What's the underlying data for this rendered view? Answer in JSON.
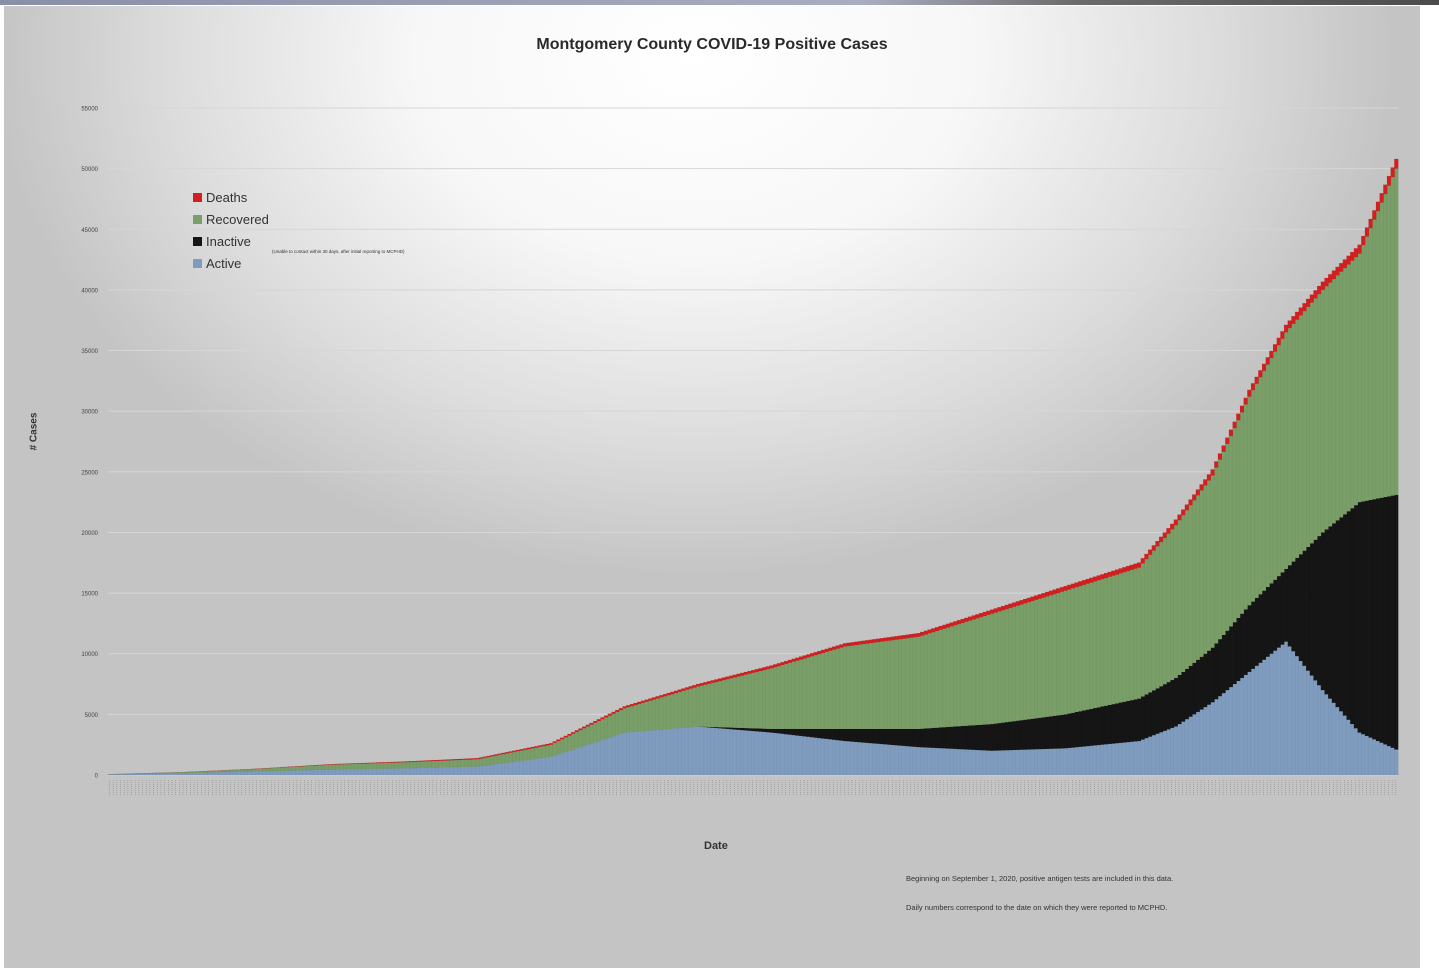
{
  "chart_data": {
    "type": "area",
    "stacked": true,
    "title": "Montgomery County COVID-19 Positive Cases",
    "xlabel": "Date",
    "ylabel": "# Cases",
    "ylim": [
      0,
      55000
    ],
    "y_ticks": [
      0,
      5000,
      10000,
      15000,
      20000,
      25000,
      30000,
      35000,
      40000,
      45000,
      50000,
      55000
    ],
    "grid": true,
    "legend_position": "top-left",
    "x_index": [
      0,
      20,
      40,
      60,
      80,
      100,
      120,
      140,
      160,
      180,
      200,
      220,
      240,
      260,
      280,
      290,
      300,
      310,
      320,
      330,
      340,
      350
    ],
    "series": [
      {
        "name": "Active",
        "color": "#7f9cbf",
        "values": [
          50,
          150,
          300,
          450,
          550,
          700,
          1500,
          3500,
          4000,
          3500,
          2800,
          2300,
          2000,
          2200,
          2800,
          4000,
          6000,
          8500,
          11000,
          7000,
          3500,
          2100
        ]
      },
      {
        "name": "Inactive",
        "color": "#151515",
        "values": [
          0,
          0,
          0,
          0,
          0,
          0,
          0,
          0,
          0,
          300,
          1000,
          1500,
          2200,
          2800,
          3500,
          4000,
          4500,
          5500,
          6000,
          13000,
          19000,
          21000
        ]
      },
      {
        "name": "Recovered",
        "color": "#7a9e68",
        "values": [
          20,
          80,
          200,
          400,
          500,
          600,
          1000,
          2000,
          3300,
          5000,
          6800,
          7600,
          9100,
          10200,
          10800,
          12600,
          14200,
          17200,
          19500,
          20000,
          20500,
          26900
        ]
      },
      {
        "name": "Deaths",
        "color": "#d21f1f",
        "values": [
          0,
          10,
          20,
          40,
          60,
          90,
          120,
          160,
          200,
          230,
          260,
          300,
          340,
          380,
          420,
          460,
          500,
          560,
          620,
          680,
          730,
          800
        ]
      }
    ],
    "legend_note": "(Unable to contact within 30 days, after initial reporting to MCPHD)"
  },
  "footnotes": [
    "Beginning on September 1, 2020, positive antigen tests are included in this data.",
    "Daily numbers correspond to the date on which they were reported to MCPHD."
  ]
}
